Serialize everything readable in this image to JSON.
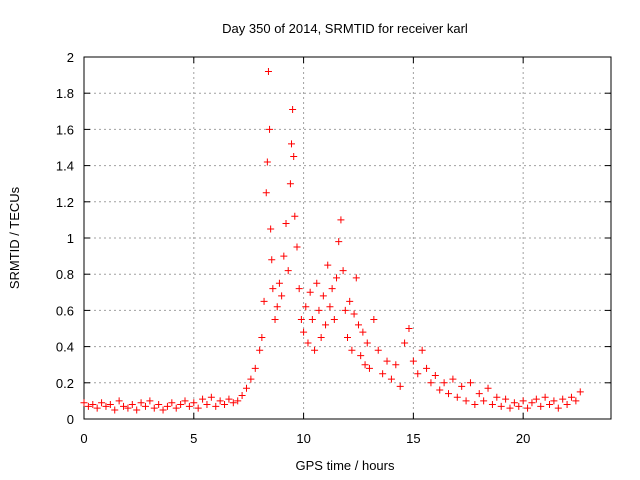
{
  "chart_data": {
    "type": "scatter",
    "title": "Day 350 of 2014, SRMTID for receiver karl",
    "xlabel": "GPS time / hours",
    "ylabel": "SRMTID / TECUs",
    "xlim": [
      0,
      24
    ],
    "ylim": [
      0,
      2
    ],
    "xticks": [
      0,
      5,
      10,
      15,
      20
    ],
    "xtick_labels": [
      "0",
      "5",
      "10",
      "15",
      "20"
    ],
    "yticks": [
      0,
      0.2,
      0.4,
      0.6,
      0.8,
      1,
      1.2,
      1.4,
      1.6,
      1.8,
      2
    ],
    "ytick_labels": [
      "0",
      "0.2",
      "0.4",
      "0.6",
      "0.8",
      "1",
      "1.2",
      "1.4",
      "1.6",
      "1.8",
      "2"
    ],
    "grid": true,
    "marker": "+",
    "color": "#ff0000",
    "series": [
      {
        "name": "SRMTID",
        "points": [
          [
            0.0,
            0.09
          ],
          [
            0.2,
            0.07
          ],
          [
            0.4,
            0.08
          ],
          [
            0.6,
            0.06
          ],
          [
            0.8,
            0.09
          ],
          [
            1.0,
            0.07
          ],
          [
            1.2,
            0.08
          ],
          [
            1.4,
            0.05
          ],
          [
            1.6,
            0.1
          ],
          [
            1.8,
            0.07
          ],
          [
            2.0,
            0.06
          ],
          [
            2.2,
            0.08
          ],
          [
            2.4,
            0.05
          ],
          [
            2.6,
            0.09
          ],
          [
            2.8,
            0.07
          ],
          [
            3.0,
            0.1
          ],
          [
            3.2,
            0.06
          ],
          [
            3.4,
            0.08
          ],
          [
            3.6,
            0.05
          ],
          [
            3.8,
            0.07
          ],
          [
            4.0,
            0.09
          ],
          [
            4.2,
            0.06
          ],
          [
            4.4,
            0.08
          ],
          [
            4.6,
            0.1
          ],
          [
            4.8,
            0.07
          ],
          [
            5.0,
            0.09
          ],
          [
            5.2,
            0.06
          ],
          [
            5.4,
            0.11
          ],
          [
            5.6,
            0.08
          ],
          [
            5.8,
            0.12
          ],
          [
            6.0,
            0.07
          ],
          [
            6.2,
            0.1
          ],
          [
            6.4,
            0.08
          ],
          [
            6.6,
            0.11
          ],
          [
            6.8,
            0.09
          ],
          [
            7.0,
            0.1
          ],
          [
            7.2,
            0.13
          ],
          [
            7.4,
            0.17
          ],
          [
            7.6,
            0.22
          ],
          [
            7.8,
            0.28
          ],
          [
            8.0,
            0.38
          ],
          [
            8.1,
            0.45
          ],
          [
            8.2,
            0.65
          ],
          [
            8.3,
            1.25
          ],
          [
            8.35,
            1.42
          ],
          [
            8.4,
            1.92
          ],
          [
            8.45,
            1.6
          ],
          [
            8.5,
            1.05
          ],
          [
            8.55,
            0.88
          ],
          [
            8.6,
            0.72
          ],
          [
            8.7,
            0.55
          ],
          [
            8.8,
            0.62
          ],
          [
            8.9,
            0.75
          ],
          [
            9.0,
            0.68
          ],
          [
            9.1,
            0.9
          ],
          [
            9.2,
            1.08
          ],
          [
            9.3,
            0.82
          ],
          [
            9.4,
            1.3
          ],
          [
            9.45,
            1.52
          ],
          [
            9.5,
            1.71
          ],
          [
            9.55,
            1.45
          ],
          [
            9.6,
            1.12
          ],
          [
            9.7,
            0.95
          ],
          [
            9.8,
            0.72
          ],
          [
            9.9,
            0.55
          ],
          [
            10.0,
            0.48
          ],
          [
            10.1,
            0.62
          ],
          [
            10.2,
            0.42
          ],
          [
            10.3,
            0.7
          ],
          [
            10.4,
            0.55
          ],
          [
            10.5,
            0.38
          ],
          [
            10.6,
            0.75
          ],
          [
            10.7,
            0.6
          ],
          [
            10.8,
            0.45
          ],
          [
            10.9,
            0.68
          ],
          [
            11.0,
            0.52
          ],
          [
            11.1,
            0.85
          ],
          [
            11.2,
            0.62
          ],
          [
            11.3,
            0.72
          ],
          [
            11.4,
            0.55
          ],
          [
            11.5,
            0.78
          ],
          [
            11.6,
            0.98
          ],
          [
            11.7,
            1.1
          ],
          [
            11.8,
            0.82
          ],
          [
            11.9,
            0.6
          ],
          [
            12.0,
            0.45
          ],
          [
            12.1,
            0.65
          ],
          [
            12.2,
            0.38
          ],
          [
            12.3,
            0.58
          ],
          [
            12.4,
            0.78
          ],
          [
            12.5,
            0.52
          ],
          [
            12.6,
            0.35
          ],
          [
            12.7,
            0.48
          ],
          [
            12.8,
            0.3
          ],
          [
            12.9,
            0.42
          ],
          [
            13.0,
            0.28
          ],
          [
            13.2,
            0.55
          ],
          [
            13.4,
            0.38
          ],
          [
            13.6,
            0.25
          ],
          [
            13.8,
            0.32
          ],
          [
            14.0,
            0.22
          ],
          [
            14.2,
            0.3
          ],
          [
            14.4,
            0.18
          ],
          [
            14.6,
            0.42
          ],
          [
            14.8,
            0.5
          ],
          [
            15.0,
            0.32
          ],
          [
            15.2,
            0.25
          ],
          [
            15.4,
            0.38
          ],
          [
            15.6,
            0.28
          ],
          [
            15.8,
            0.2
          ],
          [
            16.0,
            0.24
          ],
          [
            16.2,
            0.16
          ],
          [
            16.4,
            0.2
          ],
          [
            16.6,
            0.14
          ],
          [
            16.8,
            0.22
          ],
          [
            17.0,
            0.12
          ],
          [
            17.2,
            0.18
          ],
          [
            17.4,
            0.1
          ],
          [
            17.6,
            0.2
          ],
          [
            17.8,
            0.08
          ],
          [
            18.0,
            0.14
          ],
          [
            18.2,
            0.1
          ],
          [
            18.4,
            0.17
          ],
          [
            18.6,
            0.08
          ],
          [
            18.8,
            0.12
          ],
          [
            19.0,
            0.07
          ],
          [
            19.2,
            0.11
          ],
          [
            19.4,
            0.06
          ],
          [
            19.6,
            0.09
          ],
          [
            19.8,
            0.07
          ],
          [
            20.0,
            0.1
          ],
          [
            20.2,
            0.06
          ],
          [
            20.4,
            0.09
          ],
          [
            20.6,
            0.11
          ],
          [
            20.8,
            0.07
          ],
          [
            21.0,
            0.12
          ],
          [
            21.2,
            0.08
          ],
          [
            21.4,
            0.1
          ],
          [
            21.6,
            0.06
          ],
          [
            21.8,
            0.11
          ],
          [
            22.0,
            0.08
          ],
          [
            22.2,
            0.12
          ],
          [
            22.4,
            0.1
          ],
          [
            22.6,
            0.15
          ]
        ]
      }
    ]
  }
}
